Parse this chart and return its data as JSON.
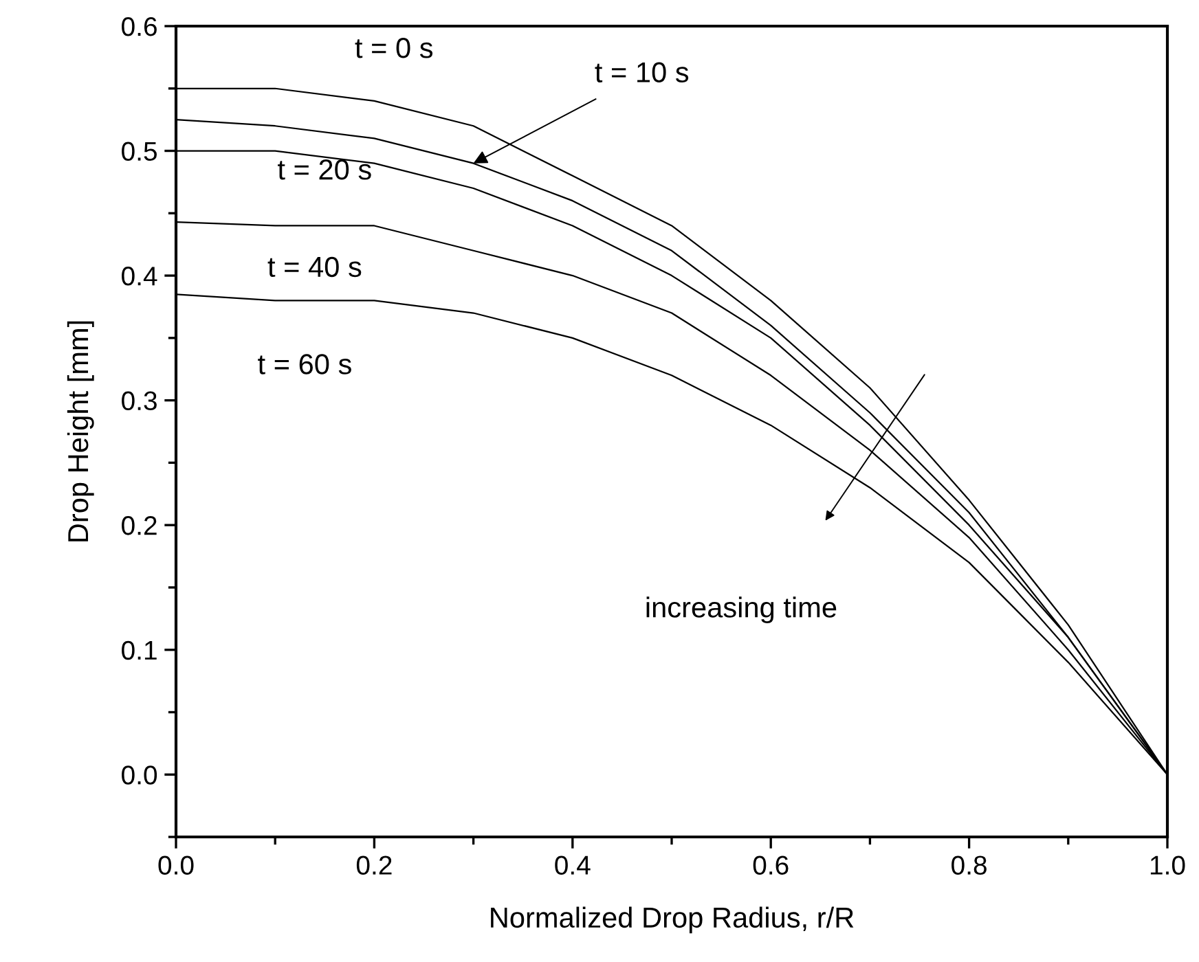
{
  "chart_data": {
    "type": "line",
    "xlabel": "Normalized Drop Radius, r/R",
    "ylabel": "Drop Height [mm]",
    "x": [
      0,
      0.1,
      0.2,
      0.3,
      0.4,
      0.5,
      0.6,
      0.7,
      0.8,
      0.9,
      1.0
    ],
    "series": [
      {
        "color": "#000000",
        "values": [
          0.55,
          0.55,
          0.54,
          0.52,
          0.48,
          0.44,
          0.38,
          0.31,
          0.22,
          0.12,
          0
        ]
      },
      {
        "color": "#000000",
        "values": [
          0.525,
          0.52,
          0.51,
          0.49,
          0.46,
          0.42,
          0.36,
          0.29,
          0.21,
          0.11,
          0
        ]
      },
      {
        "color": "#000000",
        "values": [
          0.5,
          0.5,
          0.49,
          0.47,
          0.44,
          0.4,
          0.35,
          0.28,
          0.2,
          0.11,
          0
        ]
      },
      {
        "color": "#000000",
        "values": [
          0.443,
          0.44,
          0.44,
          0.42,
          0.4,
          0.37,
          0.32,
          0.26,
          0.19,
          0.1,
          0
        ]
      },
      {
        "color": "#000000",
        "values": [
          0.385,
          0.38,
          0.38,
          0.37,
          0.35,
          0.32,
          0.28,
          0.23,
          0.17,
          0.09,
          0
        ]
      }
    ],
    "xlim": [
      0,
      1.0
    ],
    "ylim": [
      -0.05,
      0.6
    ],
    "xticks": [
      {
        "value": 0,
        "label": "0.0"
      },
      {
        "value": 0.1,
        "label": null
      },
      {
        "value": 0.2,
        "label": "0.2"
      },
      {
        "value": 0.3,
        "label": null
      },
      {
        "value": 0.4,
        "label": "0.4"
      },
      {
        "value": 0.5,
        "label": null
      },
      {
        "value": 0.6,
        "label": "0.6"
      },
      {
        "value": 0.7,
        "label": null
      },
      {
        "value": 0.8,
        "label": "0.8"
      },
      {
        "value": 0.9,
        "label": null
      },
      {
        "value": 1.0,
        "label": "1.0"
      }
    ],
    "yticks": [
      {
        "value": -0.05,
        "label": null
      },
      {
        "value": 0,
        "label": "0.0"
      },
      {
        "value": 0.05,
        "label": null
      },
      {
        "value": 0.1,
        "label": "0.1"
      },
      {
        "value": 0.15,
        "label": null
      },
      {
        "value": 0.2,
        "label": "0.2"
      },
      {
        "value": 0.25,
        "label": null
      },
      {
        "value": 0.3,
        "label": "0.3"
      },
      {
        "value": 0.35,
        "label": null
      },
      {
        "value": 0.4,
        "label": "0.4"
      },
      {
        "value": 0.45,
        "label": null
      },
      {
        "value": 0.5,
        "label": "0.5"
      },
      {
        "value": 0.55,
        "label": null
      },
      {
        "value": 0.6,
        "label": "0.6"
      }
    ],
    "grid": false,
    "legend": false,
    "marker": "none",
    "line_style": "solid",
    "annotations": [
      "t = 0 s",
      {
        "text": "t = 10 s",
        "x": 0.3,
        "y": 0.49
      },
      "t = 20 s",
      "t = 40 s",
      "t = 60 s",
      "increasing time"
    ]
  }
}
